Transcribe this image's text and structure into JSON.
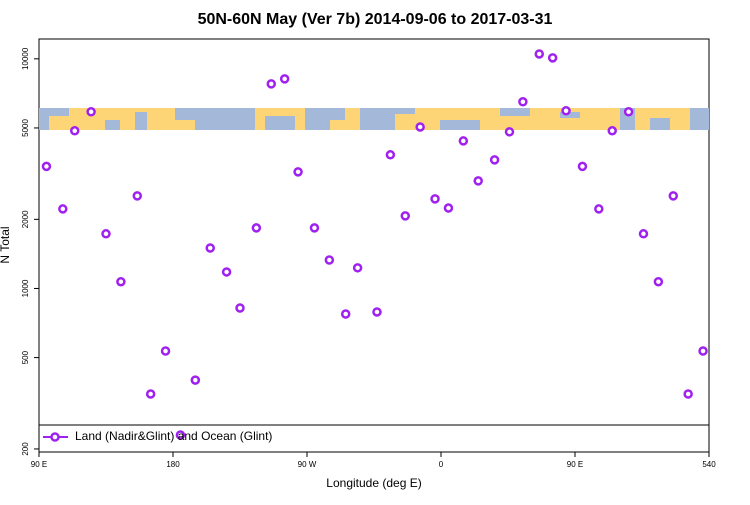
{
  "chart_data": {
    "type": "scatter",
    "title": "50N-60N May (Ver 7b)   2014-09-06 to 2017-03-31",
    "x_label": "Longitude (deg E)",
    "y_label": "N Total",
    "log_y": true,
    "xlim": [
      90,
      540
    ],
    "ylim": [
      194,
      12200
    ],
    "xticks": [
      {
        "value": 90,
        "label": "90 E"
      },
      180,
      {
        "value": 270,
        "label": "90 W"
      },
      {
        "value": 360,
        "label": "0"
      },
      {
        "value": 450,
        "label": "90 E"
      },
      540
    ],
    "yticks": [
      200,
      500,
      1000,
      2000,
      5000,
      10000
    ],
    "legend": "bottom",
    "series": [
      {
        "name": "Land (Nadir&Glint) and Ocean (Glint)",
        "color": "#a020f0",
        "x": [
          95,
          106,
          114,
          125,
          135,
          145,
          156,
          165,
          175,
          185,
          195,
          205,
          216,
          225,
          236,
          246,
          255,
          264,
          275,
          285,
          296,
          304,
          317,
          326,
          336,
          346,
          356,
          365,
          375,
          385,
          396,
          406,
          415,
          426,
          435,
          444,
          455,
          466,
          475,
          486,
          496,
          506,
          516,
          526,
          536
        ],
        "values": [
          3400,
          2220,
          4860,
          5880,
          1730,
          1070,
          2530,
          347,
          534,
          230,
          399,
          1500,
          1180,
          822,
          1835,
          7780,
          8180,
          3220,
          1835,
          1330,
          774,
          1230,
          790,
          3820,
          2070,
          5050,
          2455,
          2240,
          4390,
          2940,
          3630,
          4810,
          6500,
          10500,
          10100,
          5940,
          3400,
          2220,
          4860,
          5880,
          1730,
          1070,
          2530,
          347,
          534
        ]
      }
    ]
  }
}
